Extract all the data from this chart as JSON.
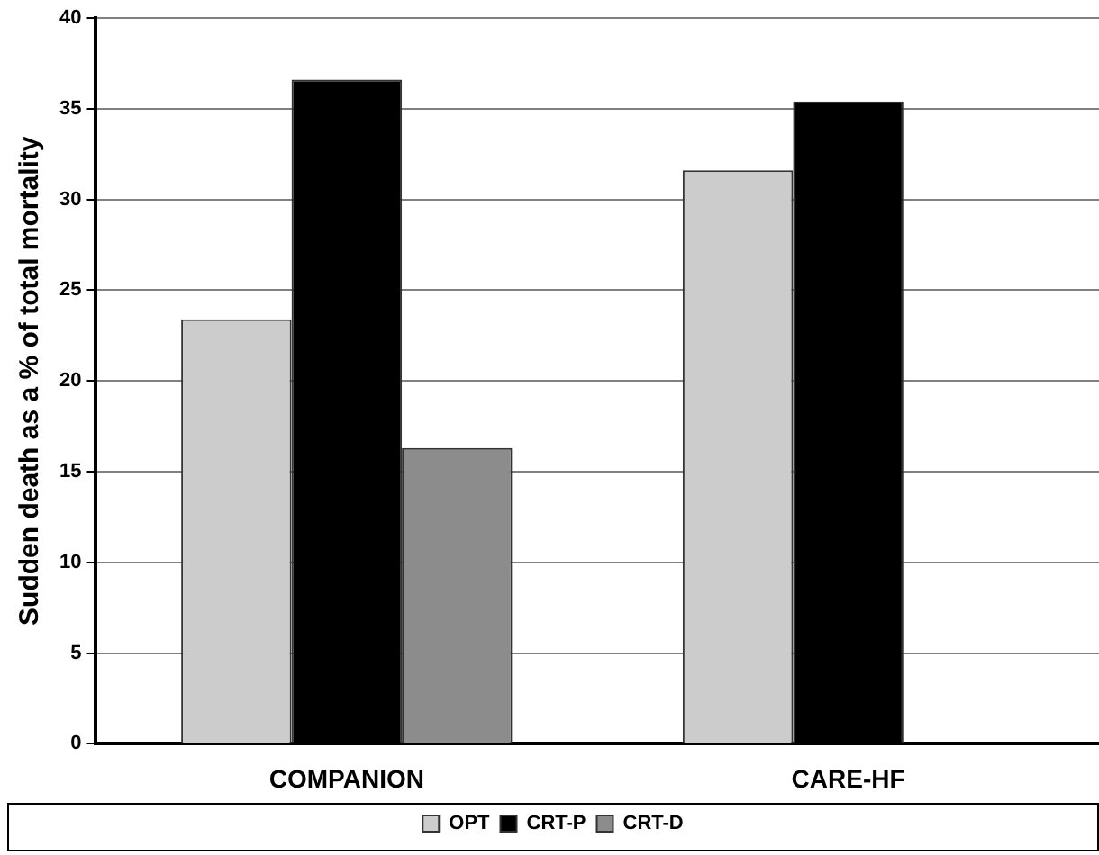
{
  "chart_data": {
    "type": "bar",
    "ylabel": "Sudden death as a % of total mortality",
    "categories": [
      "COMPANION",
      "CARE-HF"
    ],
    "series": [
      {
        "name": "OPT",
        "color": "#cccccc",
        "values": [
          23.4,
          31.6
        ]
      },
      {
        "name": "CRT-P",
        "color": "#000000",
        "values": [
          36.6,
          35.4
        ]
      },
      {
        "name": "CRT-D",
        "color": "#8c8c8c",
        "values": [
          16.3,
          null
        ]
      }
    ],
    "ylim": [
      0,
      40
    ],
    "yticks": [
      0,
      5,
      10,
      15,
      20,
      25,
      30,
      35,
      40
    ],
    "grid": "y",
    "legend": "bottom"
  }
}
